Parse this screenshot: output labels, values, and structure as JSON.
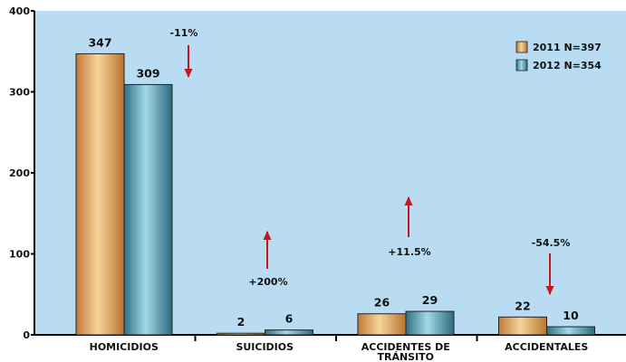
{
  "chart_data": {
    "type": "bar",
    "categories": [
      "HOMICIDIOS",
      "SUICIDIOS",
      "ACCIDENTES DE TRÁNSITO",
      "ACCIDENTALES"
    ],
    "category_lines": [
      [
        "HOMICIDIOS"
      ],
      [
        "SUICIDIOS"
      ],
      [
        "ACCIDENTES DE",
        "TRÁNSITO"
      ],
      [
        "ACCIDENTALES"
      ]
    ],
    "series": [
      {
        "name": "2011 N=397",
        "values": [
          347,
          2,
          26,
          22
        ],
        "color": "#e0a860"
      },
      {
        "name": "2012 N=354",
        "values": [
          309,
          6,
          29,
          10
        ],
        "color": "#5fa5b8"
      }
    ],
    "ylim": [
      0,
      400
    ],
    "yticks": [
      "0",
      "100",
      "200",
      "300",
      "400"
    ],
    "grid": false,
    "legend": "top-right",
    "changes": [
      {
        "category": "HOMICIDIOS",
        "label": "-11%",
        "direction": "down"
      },
      {
        "category": "SUICIDIOS",
        "label": "+200%",
        "direction": "up"
      },
      {
        "category": "ACCIDENTES DE TRÁNSITO",
        "label": "+11.5%",
        "direction": "up"
      },
      {
        "category": "ACCIDENTALES",
        "label": "-54.5%",
        "direction": "down"
      }
    ],
    "background_color": "#b9dcf2",
    "arrow_color": "#c0181c"
  }
}
